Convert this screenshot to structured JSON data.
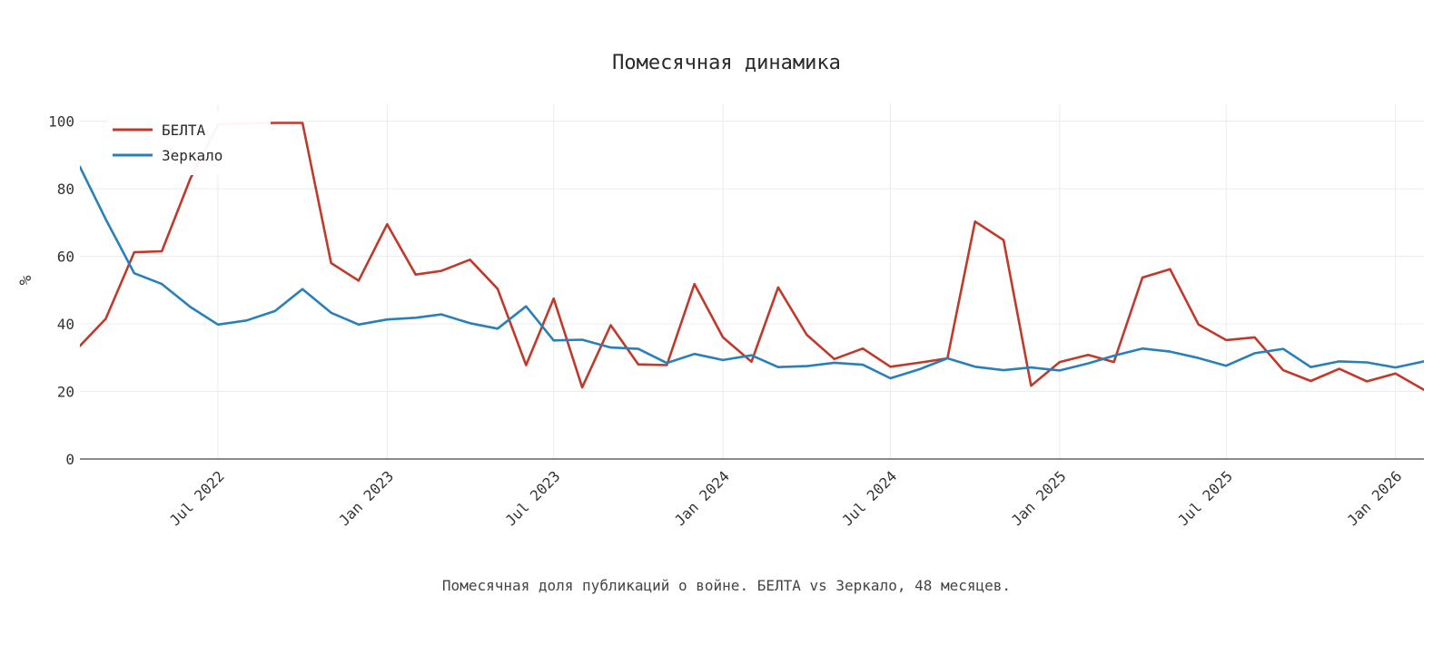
{
  "chart_data": {
    "type": "line",
    "title": "Помесячная динамика",
    "ylabel": "%",
    "xlabel": "",
    "ylim": [
      0,
      105
    ],
    "xlim": [
      "2022-02-01",
      "2026-02-01"
    ],
    "yticks": [
      0,
      20,
      40,
      60,
      80,
      100
    ],
    "xticks": [
      {
        "date": "2022-07-01",
        "label": "Jul 2022"
      },
      {
        "date": "2023-01-01",
        "label": "Jan 2023"
      },
      {
        "date": "2023-07-01",
        "label": "Jul 2023"
      },
      {
        "date": "2024-01-01",
        "label": "Jan 2024"
      },
      {
        "date": "2024-07-01",
        "label": "Jul 2024"
      },
      {
        "date": "2025-01-01",
        "label": "Jan 2025"
      },
      {
        "date": "2025-07-01",
        "label": "Jul 2025"
      },
      {
        "date": "2026-01-01",
        "label": "Jan 2026"
      }
    ],
    "x": [
      "2022-02-01",
      "2022-03-01",
      "2022-04-01",
      "2022-05-01",
      "2022-06-01",
      "2022-07-01",
      "2022-08-01",
      "2022-09-01",
      "2022-10-01",
      "2022-11-01",
      "2022-12-01",
      "2023-01-01",
      "2023-02-01",
      "2023-03-01",
      "2023-04-01",
      "2023-05-01",
      "2023-06-01",
      "2023-07-01",
      "2023-08-01",
      "2023-09-01",
      "2023-10-01",
      "2023-11-01",
      "2023-12-01",
      "2024-01-01",
      "2024-02-01",
      "2024-03-01",
      "2024-04-01",
      "2024-05-01",
      "2024-06-01",
      "2024-07-01",
      "2024-08-01",
      "2024-09-01",
      "2024-10-01",
      "2024-11-01",
      "2024-12-01",
      "2025-01-01",
      "2025-02-01",
      "2025-03-01",
      "2025-04-01",
      "2025-05-01",
      "2025-06-01",
      "2025-07-01",
      "2025-08-01",
      "2025-09-01",
      "2025-10-01",
      "2025-11-01",
      "2025-12-01",
      "2026-01-01",
      "2026-02-01"
    ],
    "series": [
      {
        "name": "БЕЛТА",
        "color": "#c0392b",
        "values": [
          33.5,
          41.5,
          61.2,
          61.5,
          83.0,
          99.0,
          99.3,
          99.5,
          99.5,
          58.0,
          52.8,
          69.5,
          54.6,
          55.7,
          59.0,
          50.4,
          27.8,
          47.5,
          21.2,
          39.6,
          28.0,
          27.8,
          51.8,
          36.0,
          28.8,
          50.8,
          36.8,
          29.6,
          32.7,
          27.3,
          28.5,
          29.8,
          70.3,
          64.8,
          21.7,
          28.7,
          30.8,
          28.7,
          53.7,
          56.2,
          39.8,
          35.2,
          36.0,
          26.3,
          23.1,
          26.7,
          23.0,
          25.3,
          20.5
        ]
      },
      {
        "name": "Зеркало",
        "color": "#2980b9",
        "values": [
          86.5,
          71.0,
          55.0,
          51.8,
          45.0,
          39.8,
          41.0,
          43.8,
          50.3,
          43.3,
          39.8,
          41.3,
          41.8,
          42.8,
          40.2,
          38.6,
          45.2,
          35.1,
          35.3,
          33.0,
          32.6,
          28.4,
          31.1,
          29.3,
          30.7,
          27.2,
          27.5,
          28.5,
          27.9,
          23.9,
          26.5,
          29.8,
          27.3,
          26.3,
          27.1,
          26.2,
          28.3,
          30.6,
          32.7,
          31.8,
          29.9,
          27.6,
          31.3,
          32.6,
          27.2,
          28.9,
          28.6,
          27.1,
          28.9
        ]
      }
    ],
    "grid": true,
    "legend_position": "top-left"
  },
  "caption": "Помесячная доля публикаций о войне. БЕЛТА vs Зеркало, 48 месяцев."
}
